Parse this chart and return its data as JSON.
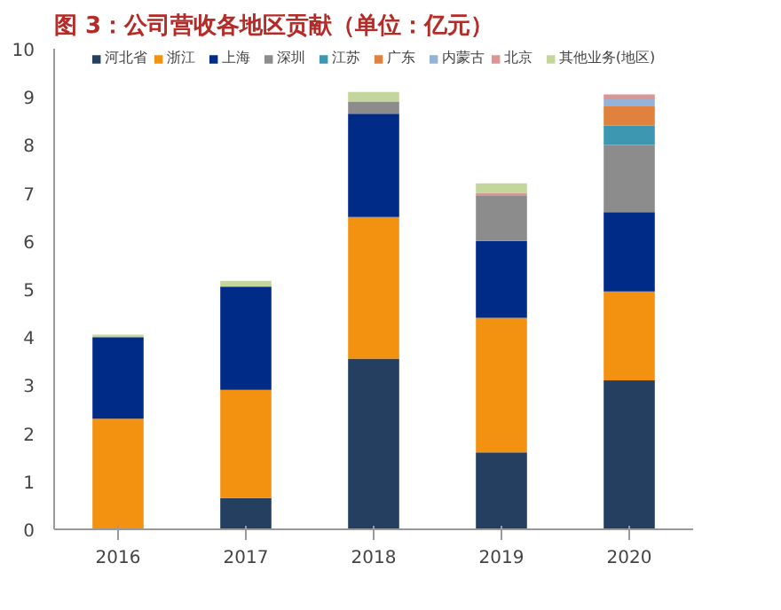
{
  "chart_data": {
    "type": "bar",
    "title": "图 3：公司营收各地区贡献（单位：亿元）",
    "stacked": true,
    "categories": [
      "2016",
      "2017",
      "2018",
      "2019",
      "2020"
    ],
    "series": [
      {
        "name": "河北省",
        "color": "#243f60",
        "values": [
          null,
          0.65,
          3.55,
          1.6,
          3.1
        ]
      },
      {
        "name": "浙江",
        "color": "#f39110",
        "values": [
          2.3,
          2.25,
          2.95,
          2.8,
          1.85
        ]
      },
      {
        "name": "上海",
        "color": "#002b87",
        "values": [
          1.7,
          2.15,
          2.15,
          1.6,
          1.65
        ]
      },
      {
        "name": "深圳",
        "color": "#8c8c8c",
        "values": [
          null,
          null,
          0.25,
          0.95,
          1.4
        ]
      },
      {
        "name": "江苏",
        "color": "#3d97b0",
        "values": [
          null,
          null,
          null,
          null,
          0.4
        ]
      },
      {
        "name": "广东",
        "color": "#e0823d",
        "values": [
          null,
          null,
          null,
          null,
          0.4
        ]
      },
      {
        "name": "内蒙古",
        "color": "#95b3d7",
        "values": [
          null,
          null,
          null,
          null,
          0.15
        ]
      },
      {
        "name": "北京",
        "color": "#d99694",
        "values": [
          null,
          null,
          null,
          0.05,
          0.1
        ]
      },
      {
        "name": "其他业务(地区)",
        "color": "#c3d69b",
        "values": [
          0.05,
          0.12,
          0.2,
          0.2,
          null
        ]
      }
    ],
    "ylim": [
      0,
      10
    ],
    "yticks": [
      0,
      1,
      2,
      3,
      4,
      5,
      6,
      7,
      8,
      9,
      10
    ],
    "grid": false,
    "legend": "top"
  }
}
